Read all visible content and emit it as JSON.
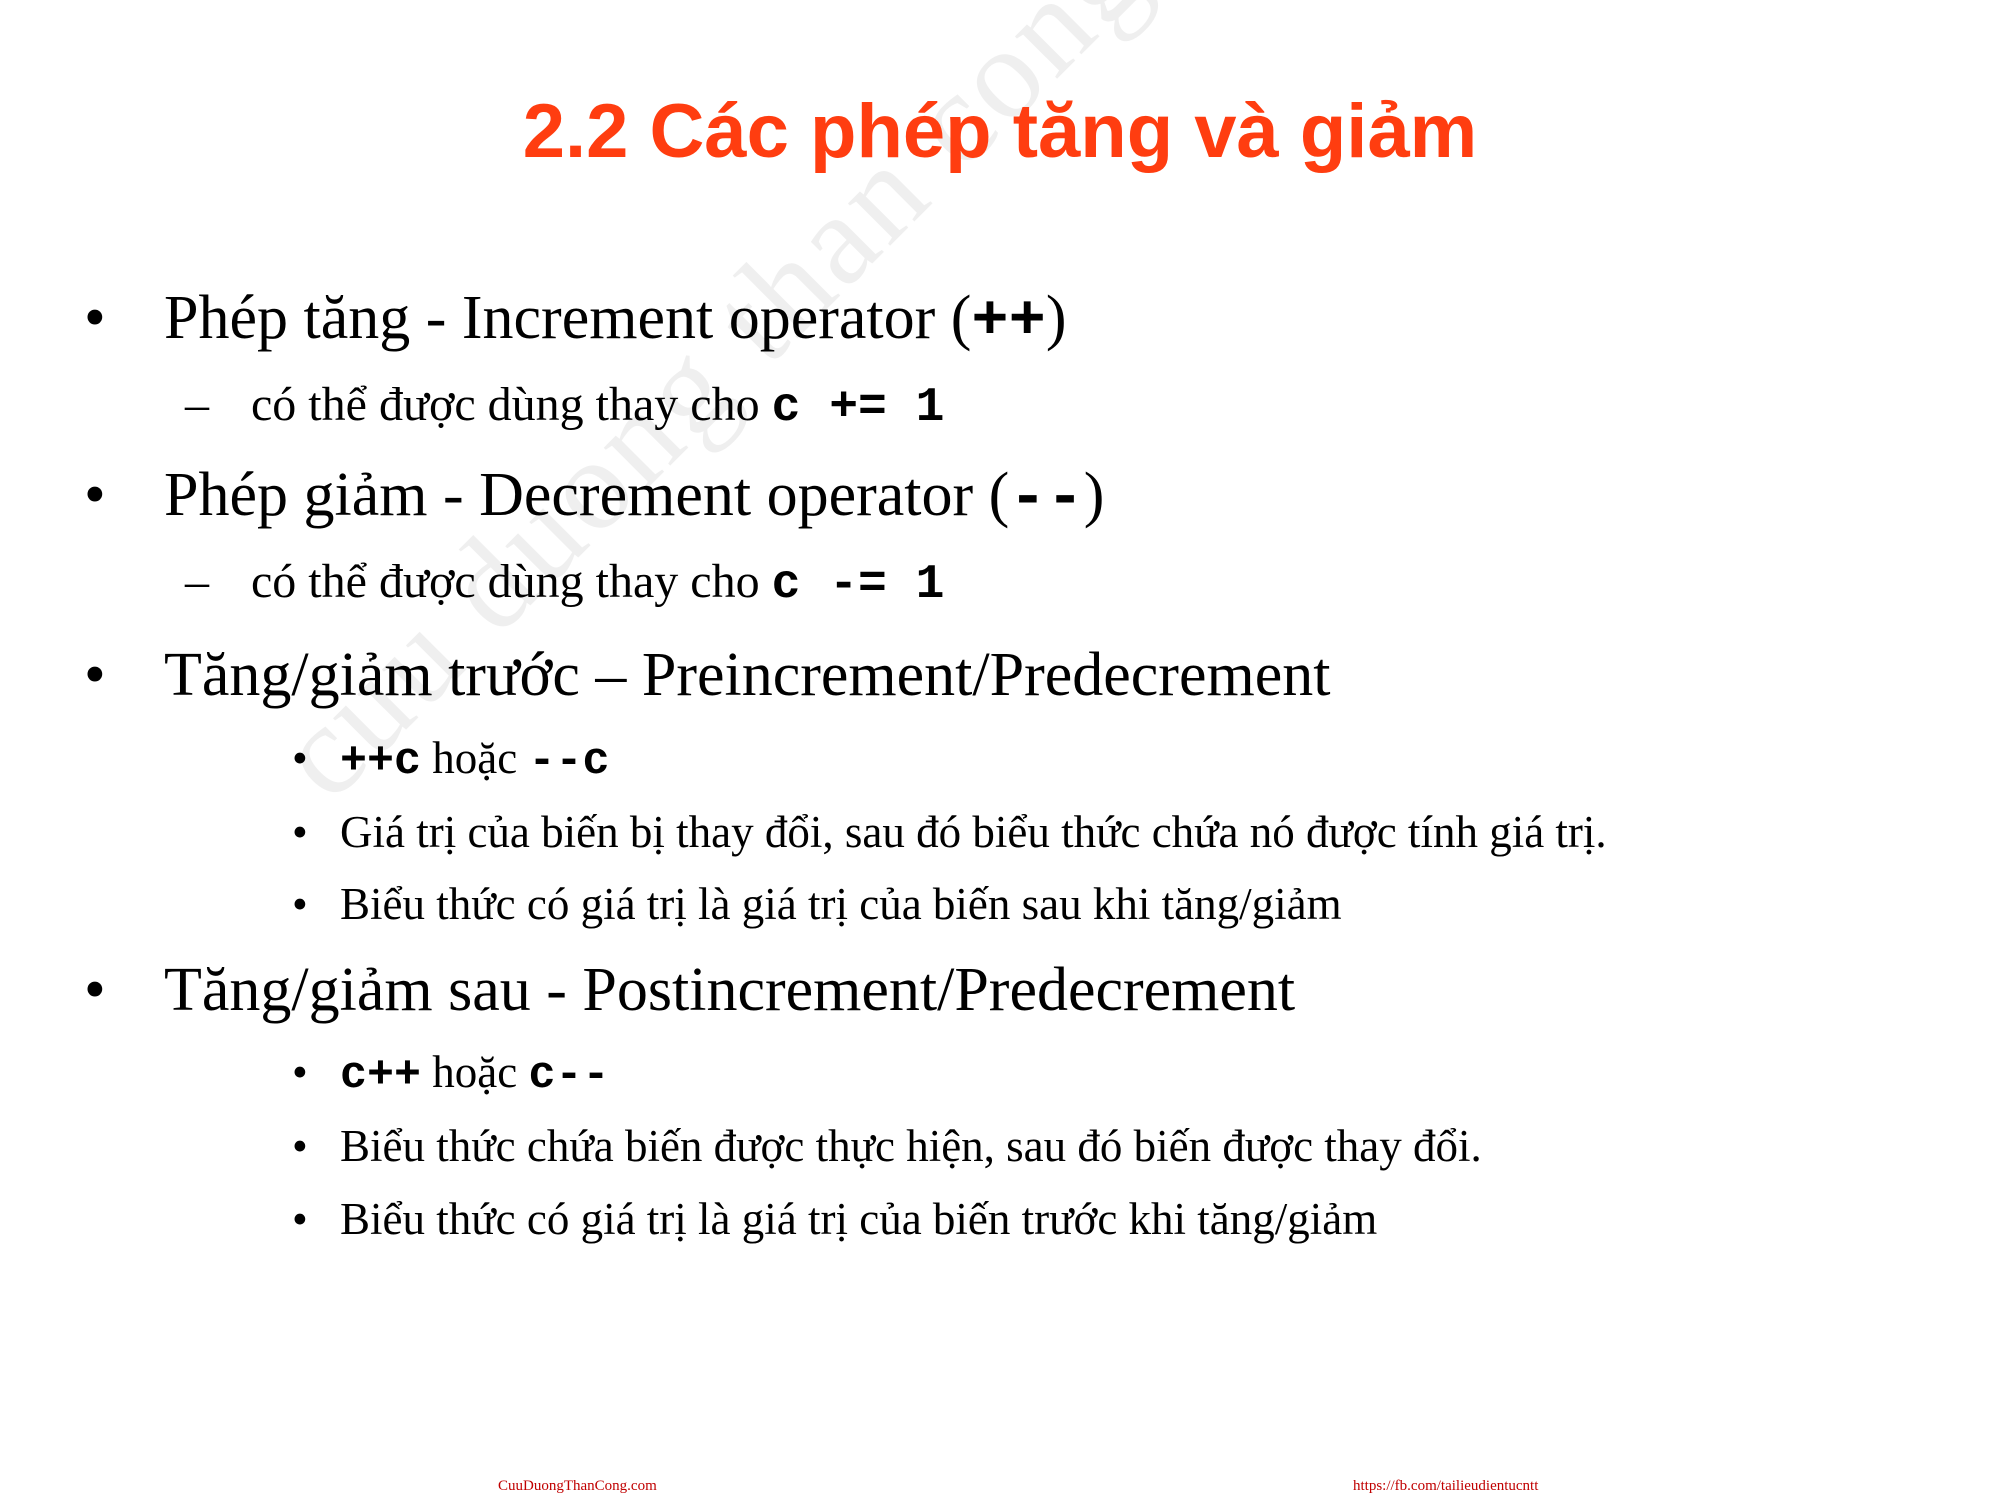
{
  "watermark": "cuu duong than cong . com",
  "title": "2.2 Các phép tăng và giảm",
  "bullets": {
    "b1": {
      "marker": "•",
      "text": "Phép tăng - Increment operator (",
      "code": "++",
      "tail": ")"
    },
    "b1s1": {
      "marker": "–",
      "text": "có thể được dùng thay cho ",
      "code": "c += 1"
    },
    "b2": {
      "marker": "•",
      "text": "Phép giảm - Decrement operator (",
      "code": "--",
      "tail": ")"
    },
    "b2s1": {
      "marker": "–",
      "text": "có thể được dùng thay cho ",
      "code": "c -= 1"
    },
    "b3": {
      "marker": "•",
      "text": "Tăng/giảm trước – Preincrement/Predecrement"
    },
    "b3s1": {
      "marker": "•",
      "code1": "++c",
      "mid": " hoặc ",
      "code2": "--c"
    },
    "b3s2": {
      "marker": "•",
      "text": "Giá trị của biến bị thay đổi, sau đó biểu thức chứa nó được tính giá trị."
    },
    "b3s3": {
      "marker": "•",
      "text": "Biểu thức có giá trị là giá trị của biến sau khi tăng/giảm"
    },
    "b4": {
      "marker": "•",
      "text": "Tăng/giảm sau - Postincrement/Predecrement"
    },
    "b4s1": {
      "marker": "•",
      "code1": "c++",
      "mid": " hoặc ",
      "code2": "c--"
    },
    "b4s2": {
      "marker": "•",
      "text": "Biểu thức chứa biến được thực hiện, sau đó biến được thay đổi."
    },
    "b4s3": {
      "marker": "•",
      "text": "Biểu thức có giá trị là giá trị của biến trước khi tăng/giảm"
    }
  },
  "footer": {
    "left": "CuuDuongThanCong.com",
    "right": "https://fb.com/tailieudientucntt"
  }
}
